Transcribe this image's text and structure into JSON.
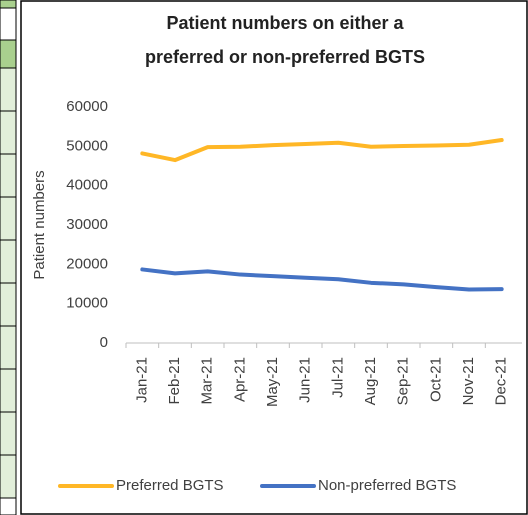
{
  "chart_data": {
    "type": "line",
    "title": [
      "Patient numbers on either a",
      "preferred or non-preferred BGTS"
    ],
    "y_label": "Patient numbers",
    "categories": [
      "Jan-21",
      "Feb-21",
      "Mar-21",
      "Apr-21",
      "May-21",
      "Jun-21",
      "Jul-21",
      "Aug-21",
      "Sep-21",
      "Oct-21",
      "Nov-21",
      "Dec-21"
    ],
    "series": [
      {
        "name": "Preferred BGTS",
        "color": "#ffb726",
        "values": [
          48200,
          46500,
          49800,
          49900,
          50300,
          50600,
          50900,
          49900,
          50100,
          50200,
          50400,
          51600
        ]
      },
      {
        "name": "Non-preferred BGTS",
        "color": "#4472c4",
        "values": [
          18700,
          17700,
          18200,
          17400,
          17000,
          16600,
          16200,
          15300,
          14900,
          14200,
          13600,
          13700
        ]
      }
    ],
    "ylim": [
      0,
      60000
    ],
    "yticks": [
      0,
      10000,
      20000,
      30000,
      40000,
      50000,
      60000
    ],
    "legend": "bottom",
    "grid": false
  }
}
